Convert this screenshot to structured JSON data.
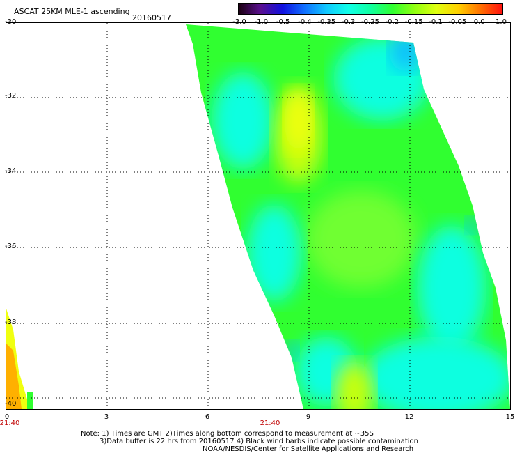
{
  "header": {
    "title": "ASCAT 25KM MLE-1 ascending",
    "date": "20160517"
  },
  "colorbar": {
    "labels": [
      "-3.0",
      "-1.0",
      "-0.5",
      "-0.4",
      "-0.35",
      "-0.3",
      "-0.25",
      "-0.2",
      "-0.15",
      "-0.1",
      "-0.05",
      "0.0",
      "1.0"
    ],
    "colors": [
      "#1a0010",
      "#5a1090",
      "#1010e0",
      "#1070ff",
      "#10c8ff",
      "#10ffe8",
      "#10ffa0",
      "#30ff30",
      "#90ff10",
      "#e0ff10",
      "#ffd000",
      "#ff7000",
      "#ff1010"
    ]
  },
  "map": {
    "lat_labels": [
      "-30",
      "-32",
      "-34",
      "-36",
      "-38",
      "-40"
    ],
    "lon_labels": [
      "0",
      "3",
      "6",
      "9",
      "12",
      "15"
    ],
    "time_labels": [
      "21:40",
      "21:40"
    ],
    "swath_colors": {
      "cyan": "#10ffe0",
      "green": "#30ff30",
      "lightgreen": "#70ff30",
      "yellowgreen": "#c8ff10",
      "yellow": "#f0ff10",
      "orange": "#ffb000",
      "blue": "#10c0ff"
    }
  },
  "footer": {
    "note1": "Note: 1) Times are GMT 2)Times along bottom correspond to measurement at ~35S",
    "note2": "3)Data buffer is 22 hrs from 20160517 4) Black wind barbs indicate possible contamination",
    "note3": "NOAA/NESDIS/Center for Satellite Applications and Research"
  }
}
